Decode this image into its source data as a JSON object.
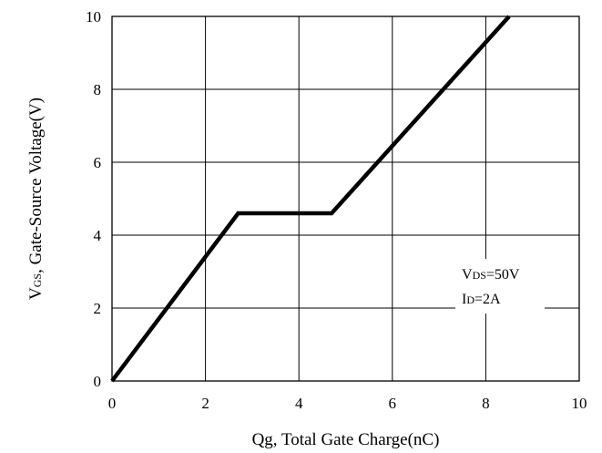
{
  "chart_data": {
    "type": "line",
    "title": "",
    "xlabel": "Qg, Total Gate Charge(nC)",
    "ylabel": {
      "prefix": "V",
      "subscript": "GS",
      "rest": ", Gate-Source Voltage(V)"
    },
    "xlim": [
      0,
      10
    ],
    "ylim": [
      0,
      10
    ],
    "xticks": [
      "0",
      "2",
      "4",
      "6",
      "8",
      "10"
    ],
    "yticks": [
      "0",
      "2",
      "4",
      "6",
      "8",
      "10"
    ],
    "grid": true,
    "series": [
      {
        "x": [
          0,
          2.7,
          4.7,
          8.5
        ],
        "y": [
          0,
          4.6,
          4.6,
          10
        ]
      }
    ],
    "annotations": [
      {
        "prefix": "V",
        "subscript": "DS",
        "rest": "=50V"
      },
      {
        "prefix": "I",
        "subscript": "D",
        "rest": "=2A"
      }
    ],
    "colors": {
      "line": "#000000",
      "grid": "#000000",
      "background": "#ffffff"
    }
  }
}
